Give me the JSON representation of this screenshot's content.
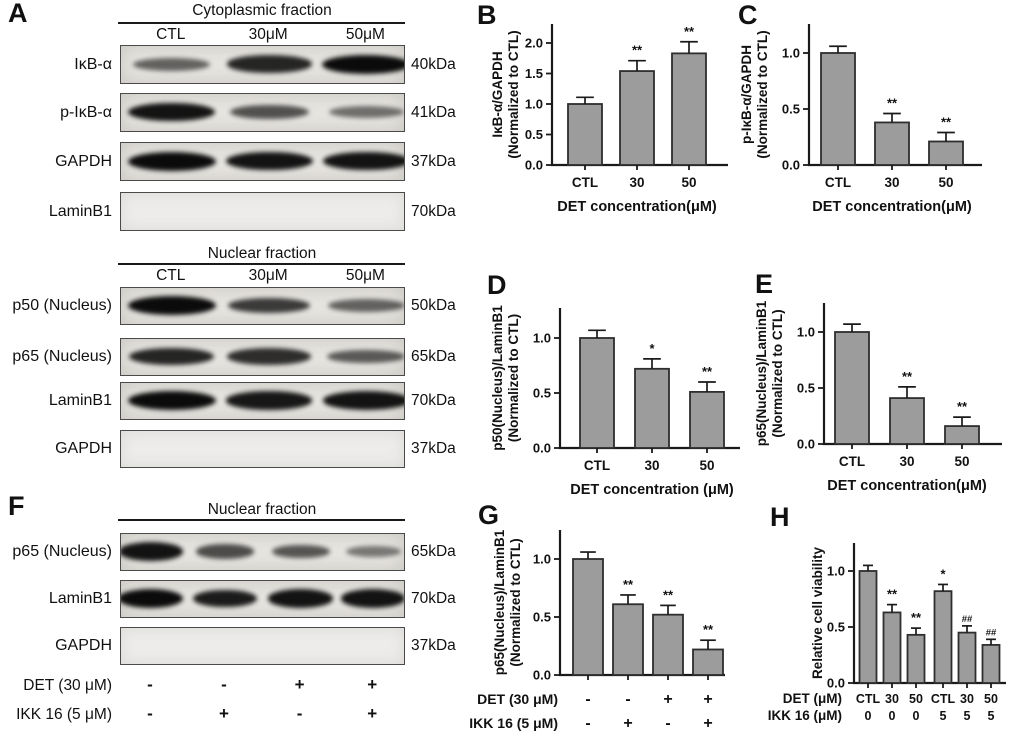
{
  "colors": {
    "bar_fill": "#9c9c9c",
    "bar_stroke": "#2e2e2e",
    "text": "#111111",
    "membrane_bg": "#e8e6e2",
    "membrane_blank_bg": "#edecea",
    "band": "#0b0b0b"
  },
  "panels": {
    "A": {
      "letter": "A",
      "groups": [
        {
          "title": "Cytoplasmic fraction",
          "lanes": [
            "CTL",
            "30μM",
            "50μM"
          ],
          "rows": [
            {
              "label": "IκB-α",
              "kda": "40kDa",
              "bands": [
                0.5,
                0.85,
                1.0
              ]
            },
            {
              "label": "p-IκB-α",
              "kda": "41kDa",
              "bands": [
                0.95,
                0.6,
                0.42
              ]
            },
            {
              "label": "GAPDH",
              "kda": "37kDa",
              "bands": [
                1.0,
                0.95,
                0.95
              ]
            },
            {
              "label": "LaminB1",
              "kda": "70kDa",
              "bands": []
            }
          ]
        },
        {
          "title": "Nuclear fraction",
          "lanes": [
            "CTL",
            "30μM",
            "50μM"
          ],
          "rows": [
            {
              "label": "p50 (Nucleus)",
              "kda": "50kDa",
              "bands": [
                1.0,
                0.72,
                0.5
              ]
            },
            {
              "label": "p65 (Nucleus)",
              "kda": "65kDa",
              "bands": [
                0.85,
                0.8,
                0.55
              ]
            },
            {
              "label": "LaminB1",
              "kda": "70kDa",
              "bands": [
                1.0,
                0.92,
                0.95
              ]
            },
            {
              "label": "GAPDH",
              "kda": "37kDa",
              "bands": []
            }
          ]
        }
      ]
    },
    "F": {
      "letter": "F",
      "title": "Nuclear fraction",
      "rows": [
        {
          "label": "p65 (Nucleus)",
          "kda": "65kDa",
          "bands": [
            0.95,
            0.62,
            0.58,
            0.38
          ]
        },
        {
          "label": "LaminB1",
          "kda": "70kDa",
          "bands": [
            1.0,
            0.9,
            0.95,
            0.95
          ]
        },
        {
          "label": "GAPDH",
          "kda": "37kDa",
          "bands": []
        }
      ],
      "treatments": [
        {
          "label": "DET (30 μM)",
          "values": [
            "-",
            "-",
            "+",
            "+"
          ]
        },
        {
          "label": "IKK 16 (5 μM)",
          "values": [
            "-",
            "+",
            "-",
            "+"
          ]
        }
      ]
    }
  },
  "chart_data": [
    {
      "panel": "B",
      "type": "bar",
      "ylabel": [
        "IκB-α/GAPDH",
        "(Normalized to CTL)"
      ],
      "categories": [
        "CTL",
        "30",
        "50"
      ],
      "values": [
        1.0,
        1.54,
        1.83
      ],
      "errors": [
        0.11,
        0.17,
        0.19
      ],
      "significance": [
        "",
        "**",
        "**"
      ],
      "xlabel": "DET concentration(μM)",
      "yticks": [
        0,
        0.5,
        1.0,
        1.5,
        2.0
      ],
      "ylim": [
        0,
        2.3
      ]
    },
    {
      "panel": "C",
      "type": "bar",
      "ylabel": [
        "p-IκB-α/GAPDH",
        "(Normalized to CTL)"
      ],
      "categories": [
        "CTL",
        "30",
        "50"
      ],
      "values": [
        1.0,
        0.38,
        0.21
      ],
      "errors": [
        0.06,
        0.08,
        0.08
      ],
      "significance": [
        "",
        "**",
        "**"
      ],
      "xlabel": "DET concentration(μM)",
      "yticks": [
        0,
        0.5,
        1.0
      ],
      "ylim": [
        0,
        1.25
      ]
    },
    {
      "panel": "D",
      "type": "bar",
      "ylabel": [
        "p50(Nucleus)/LaminB1",
        "(Normalized to CTL)"
      ],
      "categories": [
        "CTL",
        "30",
        "50"
      ],
      "values": [
        1.0,
        0.72,
        0.51
      ],
      "errors": [
        0.07,
        0.09,
        0.09
      ],
      "significance": [
        "",
        "*",
        "**"
      ],
      "xlabel": "DET concentration (μM)",
      "yticks": [
        0,
        0.5,
        1.0
      ],
      "ylim": [
        0,
        1.25
      ]
    },
    {
      "panel": "E",
      "type": "bar",
      "ylabel": [
        "p65(Nucleus)/LaminB1",
        "(Normalized to CTL)"
      ],
      "categories": [
        "CTL",
        "30",
        "50"
      ],
      "values": [
        1.0,
        0.41,
        0.16
      ],
      "errors": [
        0.07,
        0.1,
        0.08
      ],
      "significance": [
        "",
        "**",
        "**"
      ],
      "xlabel": "DET concentration(μM)",
      "yticks": [
        0,
        0.5,
        1.0
      ],
      "ylim": [
        0,
        1.25
      ]
    },
    {
      "panel": "G",
      "type": "bar",
      "ylabel": [
        "p65(Nucleus)/LaminB1",
        "(Normalized to CTL)"
      ],
      "values": [
        1.0,
        0.61,
        0.52,
        0.22
      ],
      "errors": [
        0.06,
        0.08,
        0.08,
        0.08
      ],
      "significance": [
        "",
        "**",
        "**",
        "**"
      ],
      "treatment_rows": [
        {
          "label": "DET (30 μM)",
          "values": [
            "-",
            "-",
            "+",
            "+"
          ]
        },
        {
          "label": "IKK 16 (5 μM)",
          "values": [
            "-",
            "+",
            "-",
            "+"
          ]
        }
      ],
      "yticks": [
        0,
        0.5,
        1.0
      ],
      "ylim": [
        0,
        1.25
      ]
    },
    {
      "panel": "H",
      "type": "bar",
      "ylabel": [
        "Relative cell viability"
      ],
      "values": [
        1.0,
        0.63,
        0.43,
        0.82,
        0.45,
        0.34
      ],
      "errors": [
        0.05,
        0.07,
        0.06,
        0.06,
        0.06,
        0.05
      ],
      "significance": [
        "",
        "**",
        "**",
        "*",
        "##",
        "##"
      ],
      "treatment_rows": [
        {
          "label": "DET (μM)",
          "values": [
            "CTL",
            "30",
            "50",
            "CTL",
            "30",
            "50"
          ]
        },
        {
          "label": "IKK 16 (μM)",
          "values": [
            "0",
            "0",
            "0",
            "5",
            "5",
            "5"
          ]
        }
      ],
      "yticks": [
        0,
        0.5,
        1.0
      ],
      "ylim": [
        0,
        1.25
      ]
    }
  ]
}
